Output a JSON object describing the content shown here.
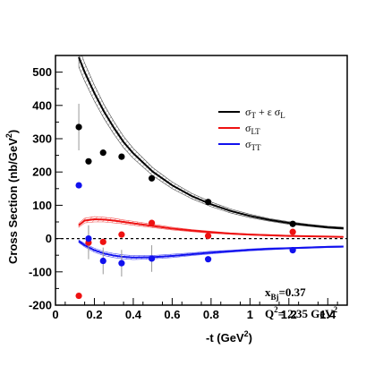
{
  "chart_data": {
    "type": "scatter",
    "xlabel": "-t (GeV",
    "xlabel_sup": "2",
    "xlabel_tail": ")",
    "ylabel": "Cross Section (nb/GeV",
    "ylabel_sup": "2",
    "ylabel_tail": ")",
    "xlim": [
      0,
      1.5
    ],
    "ylim": [
      -200,
      550
    ],
    "x_ticks": [
      "0",
      "0.2",
      "0.4",
      "0.6",
      "0.8",
      "1",
      "1.2",
      "1.4"
    ],
    "y_ticks": [
      "-200",
      "-100",
      "0",
      "100",
      "200",
      "300",
      "400",
      "500"
    ],
    "zero_line": "dashed",
    "legend_position": "right",
    "annotations": {
      "xbj": "x",
      "xbj_sub": "Bj",
      "xbj_value": "=0.37",
      "q2": "Q",
      "q2_sup": "2",
      "q2_value": "= 2.35 GeV",
      "q2_unit_sup": "2"
    },
    "legend": [
      {
        "symbol": "σ",
        "sub": "T",
        "text": " + ε σ",
        "sub2": "L",
        "color": "#000000"
      },
      {
        "symbol": "σ",
        "sub": "LT",
        "text": "",
        "sub2": "",
        "color": "#ee1111"
      },
      {
        "symbol": "σ",
        "sub": "TT",
        "text": "",
        "sub2": "",
        "color": "#1111ee"
      }
    ],
    "series": [
      {
        "name": "σT + ε σL",
        "color": "#000000",
        "points": [
          {
            "x": 0.12,
            "y": 335,
            "err": 70
          },
          {
            "x": 0.17,
            "y": 232,
            "err": 0
          },
          {
            "x": 0.245,
            "y": 258,
            "err": 0
          },
          {
            "x": 0.34,
            "y": 246,
            "err": 0
          },
          {
            "x": 0.495,
            "y": 181,
            "err": 0
          },
          {
            "x": 0.785,
            "y": 110,
            "err": 0
          },
          {
            "x": 1.22,
            "y": 44,
            "err": 0
          }
        ],
        "curve": {
          "x": [
            0.12,
            0.15,
            0.2,
            0.25,
            0.3,
            0.35,
            0.4,
            0.5,
            0.6,
            0.7,
            0.8,
            0.9,
            1.0,
            1.1,
            1.2,
            1.3,
            1.4,
            1.48
          ],
          "y": [
            545,
            500,
            437,
            381,
            333,
            290,
            256,
            201,
            160,
            128,
            103,
            83,
            68,
            56,
            47,
            40,
            34,
            31
          ]
        },
        "band_halfwidth": [
          30,
          27,
          24,
          21,
          19,
          17,
          15,
          12,
          10,
          8,
          7,
          6,
          5,
          4,
          4,
          3,
          3,
          3
        ]
      },
      {
        "name": "σLT",
        "color": "#ee1111",
        "points": [
          {
            "x": 0.12,
            "y": -172,
            "err": 0
          },
          {
            "x": 0.17,
            "y": -12,
            "err": 50
          },
          {
            "x": 0.245,
            "y": -10,
            "err": 0
          },
          {
            "x": 0.34,
            "y": 12,
            "err": 0
          },
          {
            "x": 0.495,
            "y": 47,
            "err": 0
          },
          {
            "x": 0.785,
            "y": 8,
            "err": 0
          },
          {
            "x": 1.22,
            "y": 20,
            "err": 0
          }
        ],
        "curve": {
          "x": [
            0.12,
            0.15,
            0.2,
            0.25,
            0.3,
            0.35,
            0.4,
            0.5,
            0.6,
            0.7,
            0.8,
            0.9,
            1.0,
            1.1,
            1.2,
            1.3,
            1.4,
            1.48
          ],
          "y": [
            40,
            54,
            58,
            57,
            54,
            50,
            46,
            38,
            30,
            24,
            19,
            15,
            12,
            10,
            8,
            7,
            6,
            5
          ]
        },
        "band_halfwidth": [
          6,
          7,
          8,
          7,
          7,
          6,
          6,
          5,
          4,
          3,
          3,
          2,
          2,
          2,
          2,
          1,
          1,
          1
        ]
      },
      {
        "name": "σTT",
        "color": "#1111ee",
        "points": [
          {
            "x": 0.12,
            "y": 160,
            "err": 0
          },
          {
            "x": 0.17,
            "y": 0,
            "err": 40
          },
          {
            "x": 0.245,
            "y": -67,
            "err": 40
          },
          {
            "x": 0.34,
            "y": -74,
            "err": 40
          },
          {
            "x": 0.495,
            "y": -60,
            "err": 40
          },
          {
            "x": 0.785,
            "y": -62,
            "err": 0
          },
          {
            "x": 1.22,
            "y": -35,
            "err": 0
          }
        ],
        "curve": {
          "x": [
            0.12,
            0.15,
            0.2,
            0.25,
            0.3,
            0.35,
            0.4,
            0.5,
            0.6,
            0.7,
            0.8,
            0.9,
            1.0,
            1.1,
            1.2,
            1.3,
            1.4,
            1.48
          ],
          "y": [
            -8,
            -20,
            -35,
            -45,
            -51,
            -55,
            -57,
            -56,
            -52,
            -47,
            -42,
            -38,
            -34,
            -31,
            -29,
            -27,
            -25,
            -24
          ]
        },
        "band_halfwidth": [
          4,
          5,
          6,
          6,
          6,
          6,
          6,
          5,
          5,
          4,
          4,
          3,
          3,
          3,
          2,
          2,
          2,
          2
        ]
      }
    ]
  }
}
